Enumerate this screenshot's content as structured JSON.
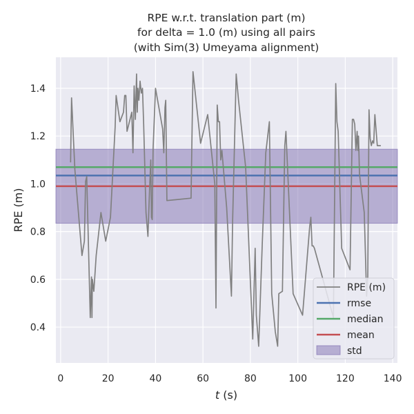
{
  "chart_data": {
    "type": "line",
    "title_lines": [
      "RPE w.r.t. translation part (m)",
      "for delta = 1.0 (m) using all pairs",
      "(with Sim(3) Umeyama alignment)"
    ],
    "xlabel_italic": "t",
    "xlabel_rest": " (s)",
    "ylabel": "RPE (m)",
    "xlim": [
      -2,
      142
    ],
    "ylim": [
      0.25,
      1.53
    ],
    "xticks": [
      0,
      20,
      40,
      60,
      80,
      100,
      120,
      140
    ],
    "yticks": [
      0.4,
      0.6,
      0.8,
      1.0,
      1.2,
      1.4
    ],
    "ytick_labels": [
      "0.4",
      "0.6",
      "0.8",
      "1.0",
      "1.2",
      "1.4"
    ],
    "grid": true,
    "legend_position": "bottom-right",
    "colors": {
      "background": "#eaeaf2",
      "grid": "#ffffff",
      "rpe": "#808080",
      "rmse": "#4c72b0",
      "median": "#55a868",
      "mean": "#c44e52",
      "std": "#8172b2"
    },
    "stats": {
      "rmse": 1.035,
      "median": 1.07,
      "mean": 0.99,
      "std_low": 0.835,
      "std_high": 1.145
    },
    "legend": [
      {
        "key": "rpe",
        "label": "RPE (m)",
        "kind": "line"
      },
      {
        "key": "rmse",
        "label": "rmse",
        "kind": "line"
      },
      {
        "key": "median",
        "label": "median",
        "kind": "line"
      },
      {
        "key": "mean",
        "label": "mean",
        "kind": "line"
      },
      {
        "key": "std",
        "label": "std",
        "kind": "patch"
      }
    ],
    "series": [
      {
        "key": "rpe",
        "x": [
          4.2,
          4.6,
          6.0,
          9.0,
          10.0,
          10.5,
          11.0,
          12.5,
          13.0,
          13.2,
          13.4,
          14.0,
          15.0,
          17.0,
          19.0,
          21.0,
          23.0,
          23.4,
          25.0,
          26.5,
          27.0,
          27.5,
          28.0,
          29.5,
          30.0,
          30.5,
          31.0,
          31.5,
          32.0,
          32.3,
          32.6,
          33.0,
          33.5,
          34.0,
          34.5,
          35.0,
          36.0,
          36.8,
          37.5,
          38.0,
          38.3,
          38.6,
          39.0,
          40.0,
          43.0,
          43.5,
          44.0,
          44.3,
          44.8,
          55.0,
          55.4,
          55.8,
          59.0,
          62.0,
          65.0,
          65.5,
          66.0,
          66.5,
          67.0,
          67.5,
          68.0,
          70.0,
          72.0,
          72.5,
          74.0,
          75.0,
          78.0,
          81.0,
          82.0,
          82.5,
          83.5,
          85.0,
          86.5,
          88.0,
          89.0,
          90.5,
          91.5,
          92.0,
          93.5,
          94.5,
          95.0,
          98.0,
          102.0,
          105.0,
          105.5,
          106.0,
          106.5,
          107.0,
          115.0,
          116.0,
          116.5,
          117.0,
          118.5,
          122.0,
          123.0,
          123.5,
          124.0,
          124.5,
          125.0,
          125.3,
          125.6,
          126.0,
          128.0,
          129.0,
          129.5,
          130.0,
          130.5,
          131.0,
          131.5,
          132.0,
          132.5,
          133.5,
          135.0
        ],
        "y": [
          1.09,
          1.36,
          1.06,
          0.7,
          0.76,
          1.01,
          1.03,
          0.44,
          0.61,
          0.44,
          0.6,
          0.55,
          0.7,
          0.88,
          0.76,
          0.86,
          1.24,
          1.37,
          1.26,
          1.3,
          1.37,
          1.37,
          1.22,
          1.28,
          1.3,
          1.13,
          1.41,
          1.27,
          1.46,
          1.3,
          1.4,
          1.35,
          1.43,
          1.38,
          1.4,
          1.25,
          0.88,
          0.78,
          0.98,
          1.1,
          0.86,
          0.85,
          1.15,
          1.4,
          1.23,
          1.13,
          1.32,
          1.35,
          0.93,
          0.94,
          1.21,
          1.47,
          1.17,
          1.29,
          1.0,
          0.48,
          1.33,
          1.26,
          1.26,
          1.1,
          1.14,
          0.9,
          0.53,
          0.84,
          1.46,
          1.35,
          1.07,
          0.35,
          0.73,
          0.45,
          0.32,
          0.75,
          1.13,
          1.26,
          0.54,
          0.38,
          0.32,
          0.54,
          0.55,
          1.16,
          1.22,
          0.54,
          0.45,
          0.82,
          0.86,
          0.74,
          0.74,
          0.73,
          0.44,
          1.42,
          1.26,
          1.22,
          0.73,
          0.64,
          1.27,
          1.27,
          1.25,
          1.14,
          1.22,
          1.14,
          1.2,
          1.04,
          0.88,
          0.53,
          0.61,
          1.31,
          1.19,
          1.16,
          1.18,
          1.17,
          1.29,
          1.16,
          1.16
        ]
      }
    ]
  }
}
